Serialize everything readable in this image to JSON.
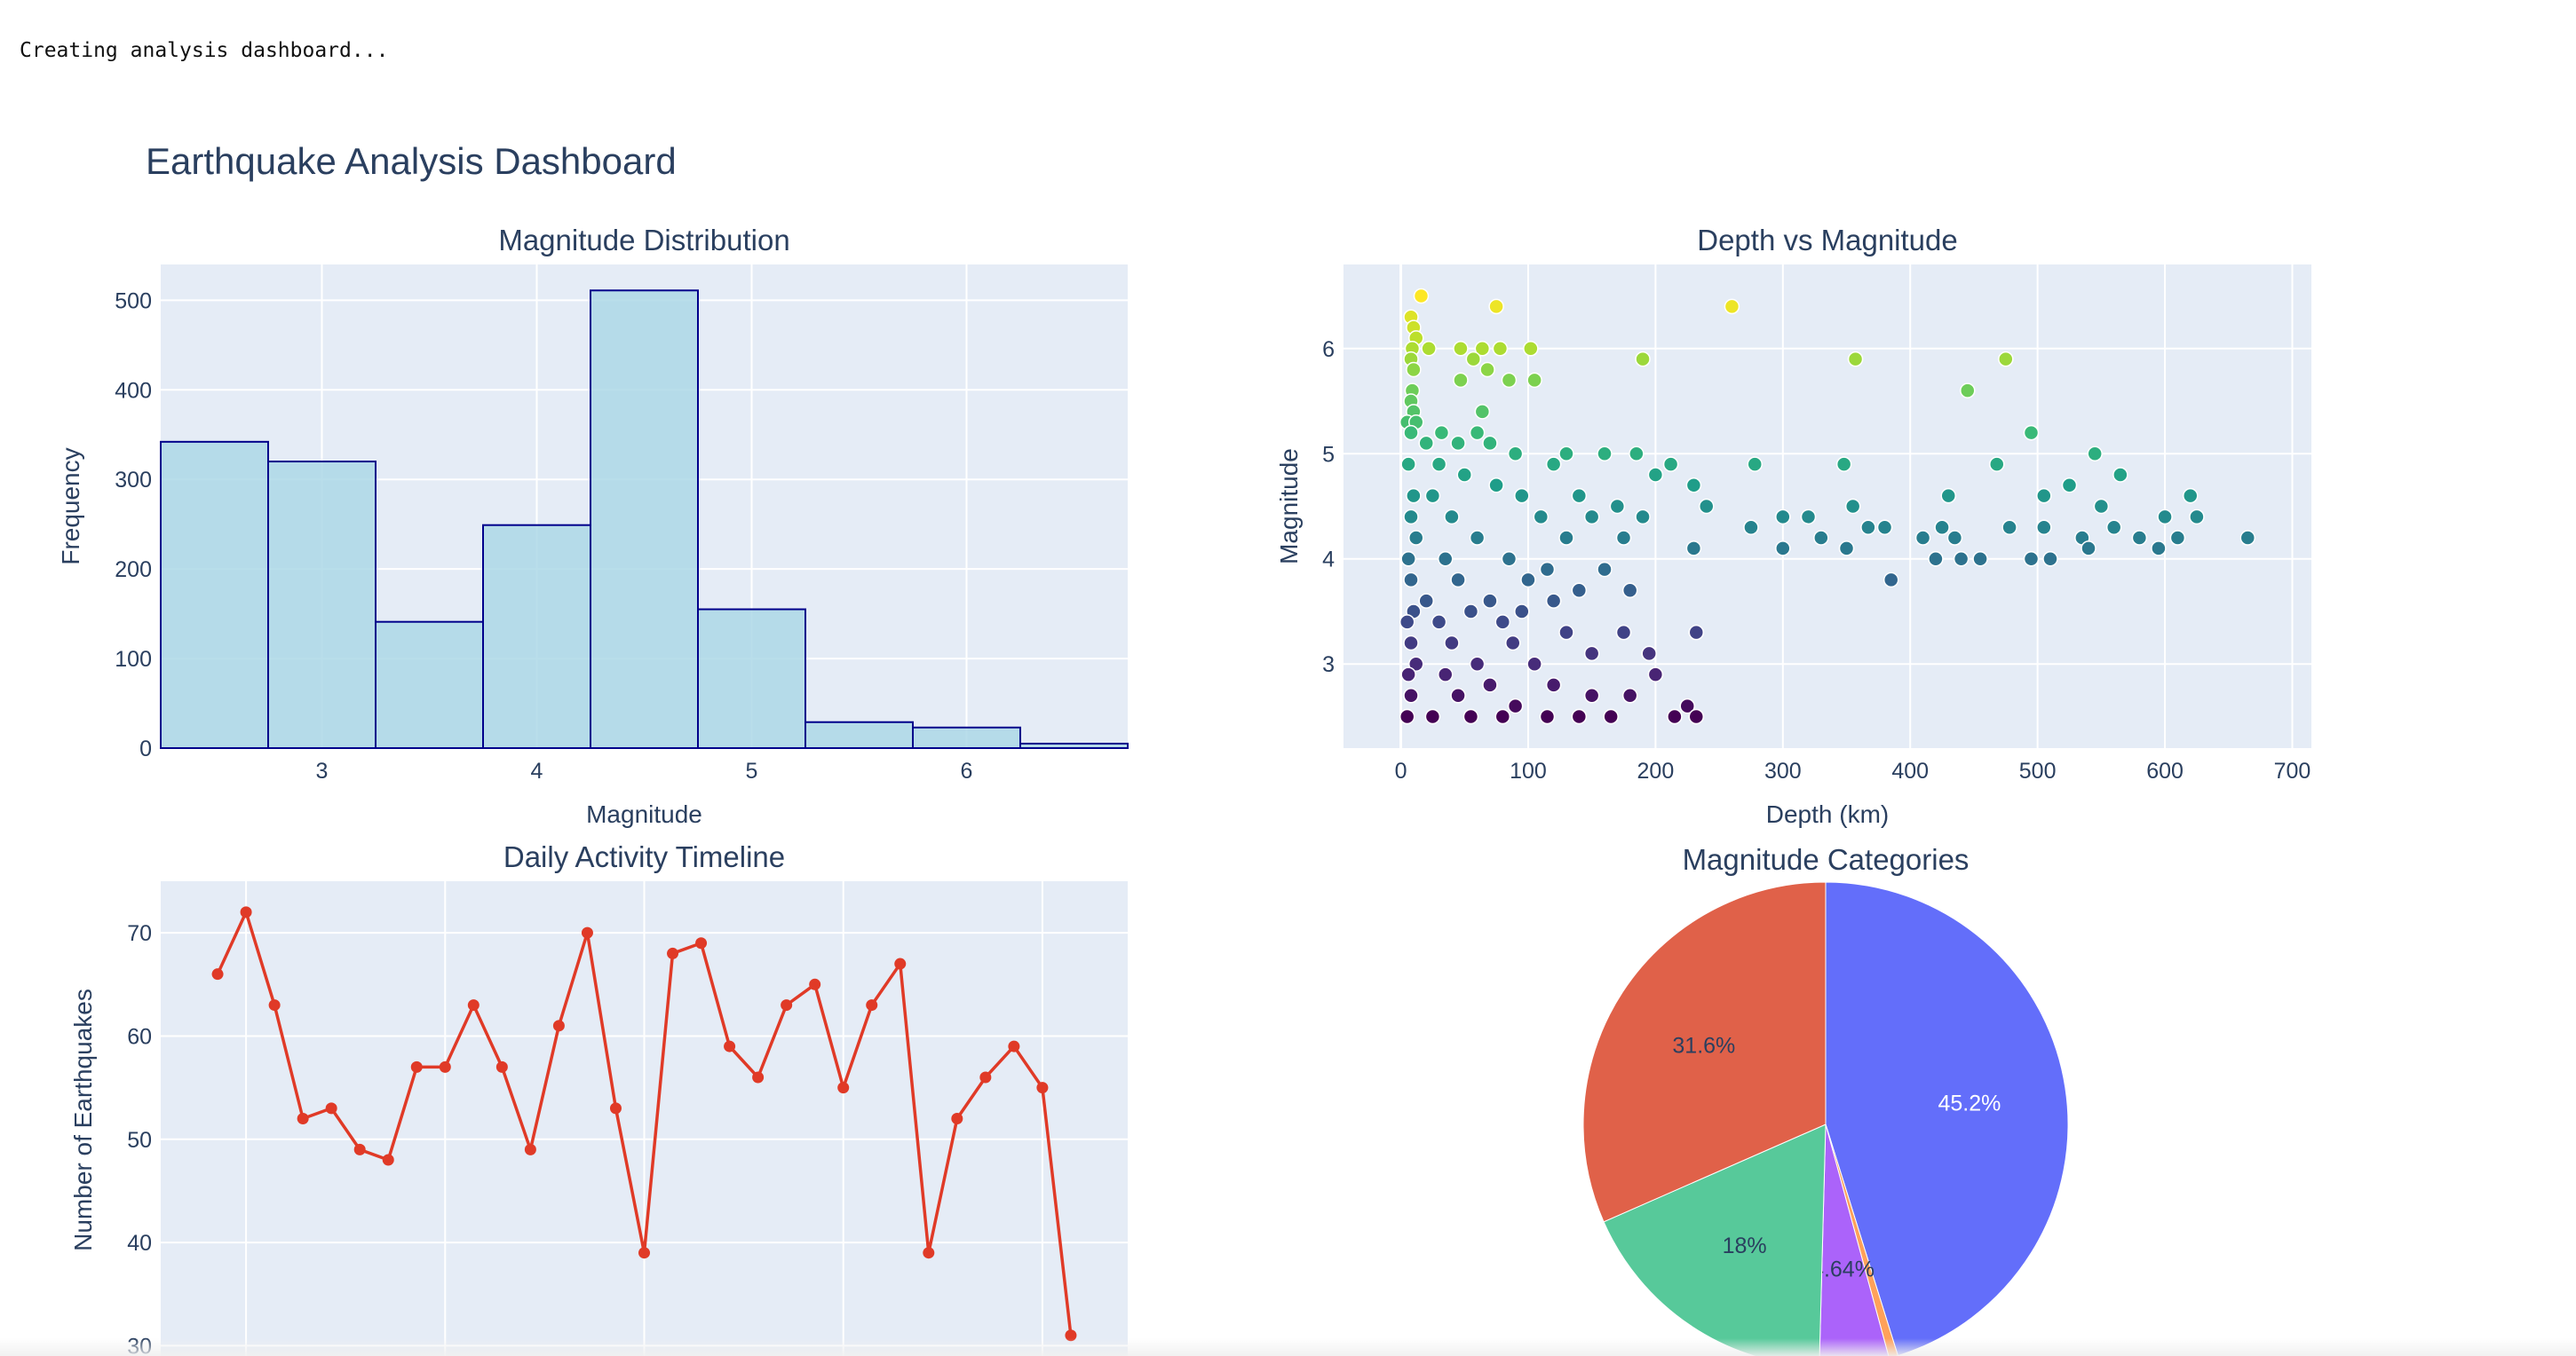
{
  "console": {
    "text": "Creating analysis dashboard..."
  },
  "dashboard": {
    "title": "Earthquake Analysis Dashboard"
  },
  "colors": {
    "plot_bg": "#e5ecf6",
    "grid": "#ffffff",
    "text": "#2a3f5f",
    "histogram_fill": "#add8e6",
    "histogram_edge": "#00008b",
    "timeline_line": "#e03a27"
  },
  "chart_data": [
    {
      "id": "hist",
      "type": "bar",
      "title": "Magnitude Distribution",
      "xlabel": "Magnitude",
      "ylabel": "Frequency",
      "xlim": [
        2.25,
        6.75
      ],
      "ylim": [
        0,
        540
      ],
      "xticks": [
        3,
        4,
        5,
        6
      ],
      "yticks": [
        0,
        100,
        200,
        300,
        400,
        500
      ],
      "bins": [
        {
          "x0": 2.25,
          "x1": 2.75,
          "value": 342
        },
        {
          "x0": 2.75,
          "x1": 3.25,
          "value": 320
        },
        {
          "x0": 3.25,
          "x1": 3.75,
          "value": 141
        },
        {
          "x0": 3.75,
          "x1": 4.25,
          "value": 249
        },
        {
          "x0": 4.25,
          "x1": 4.75,
          "value": 511
        },
        {
          "x0": 4.75,
          "x1": 5.25,
          "value": 155
        },
        {
          "x0": 5.25,
          "x1": 5.75,
          "value": 29
        },
        {
          "x0": 5.75,
          "x1": 6.25,
          "value": 23
        },
        {
          "x0": 6.25,
          "x1": 6.75,
          "value": 5
        }
      ]
    },
    {
      "id": "scatter",
      "type": "scatter",
      "title": "Depth vs Magnitude",
      "xlabel": "Depth (km)",
      "ylabel": "Magnitude",
      "xlim": [
        -45,
        715
      ],
      "ylim": [
        2.2,
        6.8
      ],
      "xticks": [
        0,
        100,
        200,
        300,
        400,
        500,
        600,
        700
      ],
      "yticks": [
        3,
        4,
        5,
        6
      ],
      "colorscale": "viridis",
      "color_range": [
        2.5,
        6.5
      ],
      "points": [
        [
          16,
          6.5
        ],
        [
          75,
          6.4
        ],
        [
          260,
          6.4
        ],
        [
          8,
          6.3
        ],
        [
          10,
          6.2
        ],
        [
          12,
          6.1
        ],
        [
          9,
          6.0
        ],
        [
          22,
          6.0
        ],
        [
          47,
          6.0
        ],
        [
          64,
          6.0
        ],
        [
          78,
          6.0
        ],
        [
          102,
          6.0
        ],
        [
          8,
          5.9
        ],
        [
          57,
          5.9
        ],
        [
          190,
          5.9
        ],
        [
          357,
          5.9
        ],
        [
          475,
          5.9
        ],
        [
          10,
          5.8
        ],
        [
          68,
          5.8
        ],
        [
          85,
          5.7
        ],
        [
          105,
          5.7
        ],
        [
          47,
          5.7
        ],
        [
          9,
          5.6
        ],
        [
          445,
          5.6
        ],
        [
          8,
          5.5
        ],
        [
          64,
          5.4
        ],
        [
          10,
          5.4
        ],
        [
          5,
          5.3
        ],
        [
          12,
          5.3
        ],
        [
          32,
          5.2
        ],
        [
          60,
          5.2
        ],
        [
          495,
          5.2
        ],
        [
          8,
          5.2
        ],
        [
          20,
          5.1
        ],
        [
          45,
          5.1
        ],
        [
          70,
          5.1
        ],
        [
          90,
          5.0
        ],
        [
          130,
          5.0
        ],
        [
          160,
          5.0
        ],
        [
          185,
          5.0
        ],
        [
          212,
          4.9
        ],
        [
          278,
          4.9
        ],
        [
          348,
          4.9
        ],
        [
          468,
          4.9
        ],
        [
          545,
          5.0
        ],
        [
          565,
          4.8
        ],
        [
          6,
          4.9
        ],
        [
          30,
          4.9
        ],
        [
          50,
          4.8
        ],
        [
          120,
          4.9
        ],
        [
          200,
          4.8
        ],
        [
          230,
          4.7
        ],
        [
          430,
          4.6
        ],
        [
          525,
          4.7
        ],
        [
          620,
          4.6
        ],
        [
          10,
          4.6
        ],
        [
          25,
          4.6
        ],
        [
          75,
          4.7
        ],
        [
          95,
          4.6
        ],
        [
          140,
          4.6
        ],
        [
          170,
          4.5
        ],
        [
          240,
          4.5
        ],
        [
          320,
          4.4
        ],
        [
          300,
          4.4
        ],
        [
          355,
          4.5
        ],
        [
          505,
          4.6
        ],
        [
          550,
          4.5
        ],
        [
          600,
          4.4
        ],
        [
          625,
          4.4
        ],
        [
          8,
          4.4
        ],
        [
          40,
          4.4
        ],
        [
          110,
          4.4
        ],
        [
          150,
          4.4
        ],
        [
          190,
          4.4
        ],
        [
          275,
          4.3
        ],
        [
          330,
          4.2
        ],
        [
          367,
          4.3
        ],
        [
          380,
          4.3
        ],
        [
          410,
          4.2
        ],
        [
          425,
          4.3
        ],
        [
          435,
          4.2
        ],
        [
          478,
          4.3
        ],
        [
          505,
          4.3
        ],
        [
          535,
          4.2
        ],
        [
          560,
          4.3
        ],
        [
          580,
          4.2
        ],
        [
          610,
          4.2
        ],
        [
          665,
          4.2
        ],
        [
          12,
          4.2
        ],
        [
          60,
          4.2
        ],
        [
          130,
          4.2
        ],
        [
          175,
          4.2
        ],
        [
          230,
          4.1
        ],
        [
          300,
          4.1
        ],
        [
          350,
          4.1
        ],
        [
          420,
          4.0
        ],
        [
          440,
          4.0
        ],
        [
          455,
          4.0
        ],
        [
          495,
          4.0
        ],
        [
          510,
          4.0
        ],
        [
          540,
          4.1
        ],
        [
          595,
          4.1
        ],
        [
          6,
          4.0
        ],
        [
          35,
          4.0
        ],
        [
          85,
          4.0
        ],
        [
          115,
          3.9
        ],
        [
          160,
          3.9
        ],
        [
          385,
          3.8
        ],
        [
          8,
          3.8
        ],
        [
          45,
          3.8
        ],
        [
          100,
          3.8
        ],
        [
          140,
          3.7
        ],
        [
          180,
          3.7
        ],
        [
          20,
          3.6
        ],
        [
          70,
          3.6
        ],
        [
          120,
          3.6
        ],
        [
          10,
          3.5
        ],
        [
          55,
          3.5
        ],
        [
          95,
          3.5
        ],
        [
          5,
          3.4
        ],
        [
          30,
          3.4
        ],
        [
          80,
          3.4
        ],
        [
          130,
          3.3
        ],
        [
          175,
          3.3
        ],
        [
          232,
          3.3
        ],
        [
          8,
          3.2
        ],
        [
          40,
          3.2
        ],
        [
          88,
          3.2
        ],
        [
          150,
          3.1
        ],
        [
          195,
          3.1
        ],
        [
          12,
          3.0
        ],
        [
          60,
          3.0
        ],
        [
          105,
          3.0
        ],
        [
          200,
          2.9
        ],
        [
          6,
          2.9
        ],
        [
          35,
          2.9
        ],
        [
          70,
          2.8
        ],
        [
          120,
          2.8
        ],
        [
          150,
          2.7
        ],
        [
          180,
          2.7
        ],
        [
          8,
          2.7
        ],
        [
          45,
          2.7
        ],
        [
          90,
          2.6
        ],
        [
          225,
          2.6
        ],
        [
          232,
          2.5
        ],
        [
          215,
          2.5
        ],
        [
          5,
          2.5
        ],
        [
          25,
          2.5
        ],
        [
          55,
          2.5
        ],
        [
          80,
          2.5
        ],
        [
          115,
          2.5
        ],
        [
          140,
          2.5
        ],
        [
          165,
          2.5
        ]
      ]
    },
    {
      "id": "timeline",
      "type": "line",
      "title": "Daily Activity Timeline",
      "xlabel": "",
      "ylabel": "Number of Earthquakes",
      "xlim": [
        -2,
        32
      ],
      "ylim": [
        29,
        75
      ],
      "yticks": [
        30,
        40,
        50,
        60,
        70
      ],
      "x": [
        0,
        1,
        2,
        3,
        4,
        5,
        6,
        7,
        8,
        9,
        10,
        11,
        12,
        13,
        14,
        15,
        16,
        17,
        18,
        19,
        20,
        21,
        22,
        23,
        24,
        25,
        26,
        27,
        28,
        29,
        30
      ],
      "values": [
        66,
        72,
        63,
        52,
        53,
        49,
        48,
        57,
        57,
        63,
        57,
        49,
        61,
        70,
        53,
        39,
        68,
        69,
        59,
        56,
        63,
        65,
        55,
        63,
        67,
        39,
        52,
        56,
        59,
        55,
        31
      ]
    },
    {
      "id": "pie",
      "type": "pie",
      "title": "Magnitude Categories",
      "slices": [
        {
          "value": 45.2,
          "label": "45.2%",
          "color": "#636efa"
        },
        {
          "value": 0.6,
          "label": "",
          "color": "#ffa15a"
        },
        {
          "value": 4.64,
          "label": "4.64%",
          "color": "#ab63fa"
        },
        {
          "value": 18.0,
          "label": "18%",
          "color": "#57c99a"
        },
        {
          "value": 31.6,
          "label": "31.6%",
          "color": "#e06149"
        }
      ]
    }
  ]
}
